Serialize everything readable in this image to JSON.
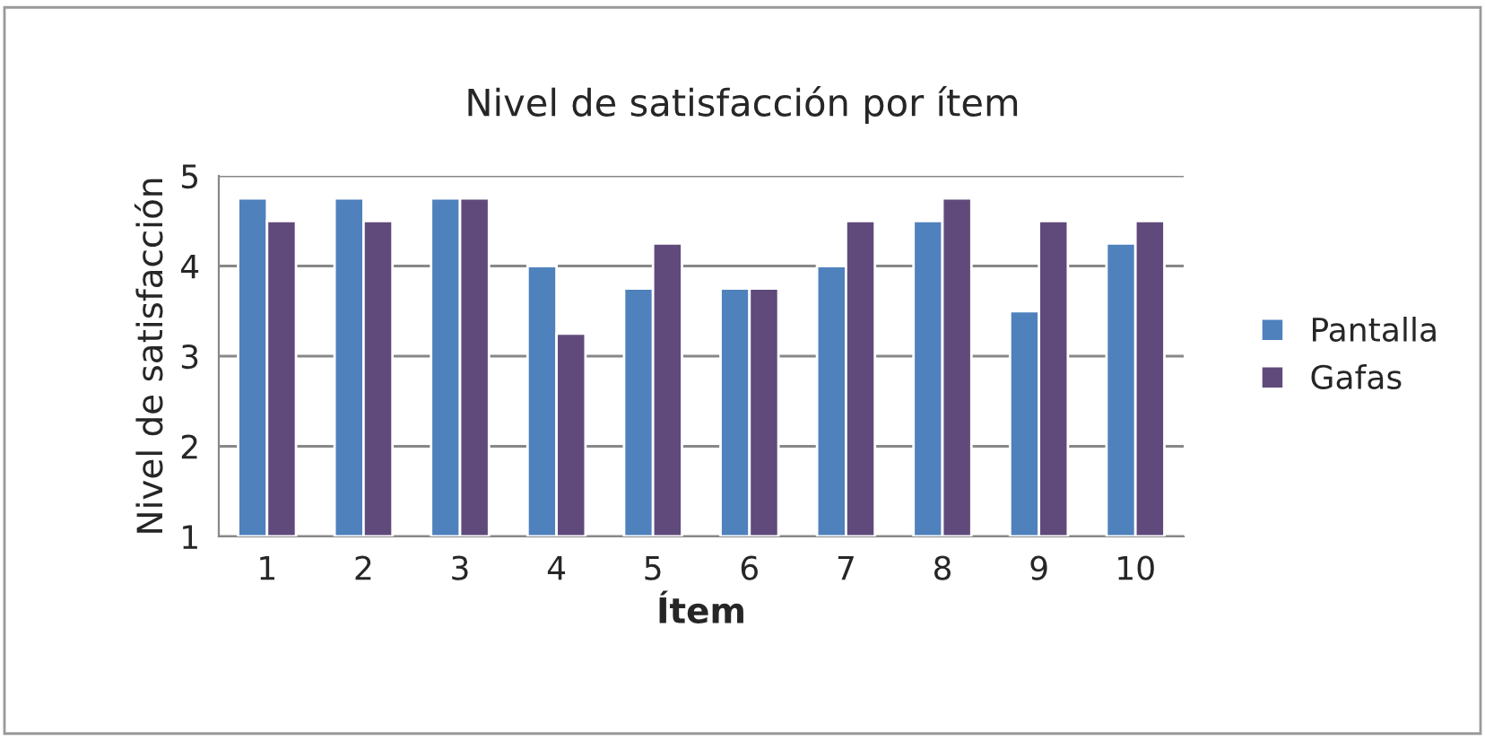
{
  "chart_data": {
    "type": "bar",
    "title": "Nivel de satisfacción por ítem",
    "xlabel": "Ítem",
    "ylabel": "Nivel de satisfacción",
    "categories": [
      "1",
      "2",
      "3",
      "4",
      "5",
      "6",
      "7",
      "8",
      "9",
      "10"
    ],
    "series": [
      {
        "name": "Pantalla",
        "color": "#4f81bd",
        "values": [
          4.75,
          4.75,
          4.75,
          4.0,
          3.75,
          3.75,
          4.0,
          4.5,
          3.5,
          4.25
        ]
      },
      {
        "name": "Gafas",
        "color": "#604a7b",
        "values": [
          4.5,
          4.5,
          4.75,
          3.25,
          4.25,
          3.75,
          4.5,
          4.75,
          4.5,
          4.5
        ]
      }
    ],
    "ylim": [
      1,
      5
    ],
    "yticks": [
      1,
      2,
      3,
      4,
      5
    ],
    "grid": "y",
    "legend": "right"
  }
}
